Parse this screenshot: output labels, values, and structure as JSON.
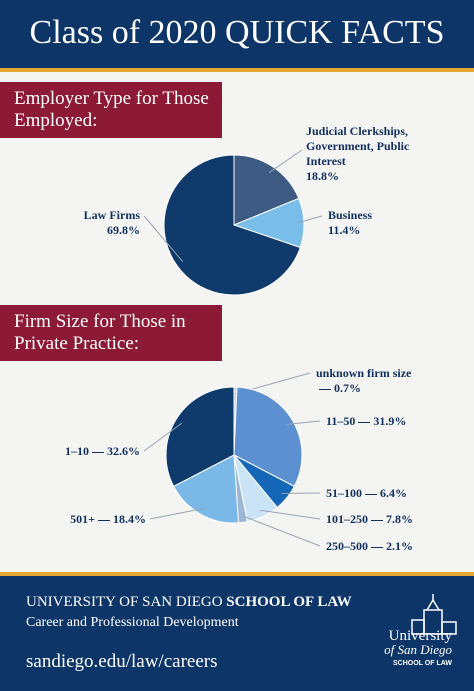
{
  "title": "Class of 2020 QUICK FACTS",
  "chart_data": [
    {
      "type": "pie",
      "title": "Employer Type for Those Employed:",
      "categories": [
        "Judicial Clerkships, Government, Public Interest",
        "Business",
        "Law Firms"
      ],
      "values": [
        18.8,
        11.4,
        69.8
      ],
      "value_labels": [
        "18.8%",
        "11.4%",
        "69.8%"
      ],
      "colors": [
        "#3c5a82",
        "#79bde9",
        "#0f3a6b"
      ]
    },
    {
      "type": "pie",
      "title": "Firm Size for Those in Private Practice:",
      "categories": [
        "unknown firm size",
        "11–50",
        "51–100",
        "101–250",
        "250–500",
        "501+",
        "1–10"
      ],
      "values": [
        0.7,
        31.9,
        6.4,
        7.8,
        2.1,
        18.4,
        32.6
      ],
      "value_labels": [
        "0.7%",
        "31.9%",
        "6.4%",
        "7.8%",
        "2.1%",
        "18.4%",
        "32.6%"
      ],
      "colors": [
        "#c7d3e2",
        "#5c90d0",
        "#1466b6",
        "#cbe3f6",
        "#9cb6d6",
        "#7ab9e7",
        "#0f3b6c"
      ]
    }
  ],
  "footer": {
    "university": "UNIVERSITY OF SAN DIEGO",
    "school": "SCHOOL OF LAW",
    "department": "Career and Professional Development",
    "url": "sandiego.edu/law/careers",
    "logo": {
      "line1": "University",
      "line2": "of San Diego",
      "line3": "SCHOOL OF LAW"
    }
  }
}
